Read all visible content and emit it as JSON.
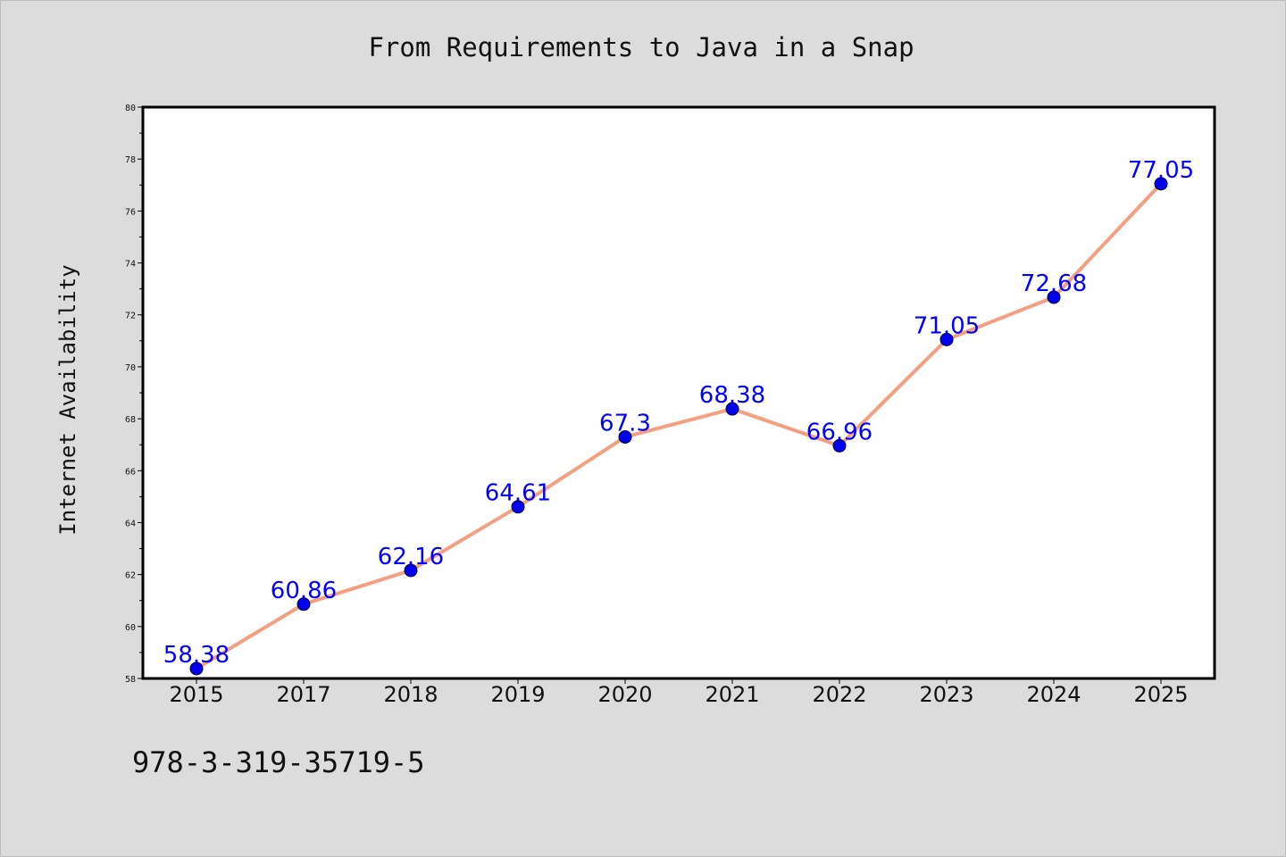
{
  "chart_data": {
    "type": "line",
    "title": "From Requirements to Java in a Snap",
    "xlabel": "",
    "ylabel": "Internet Availability",
    "categories": [
      "2015",
      "2017",
      "2018",
      "2019",
      "2020",
      "2021",
      "2022",
      "2023",
      "2024",
      "2025"
    ],
    "series": [
      {
        "values": [
          58.38,
          60.86,
          62.16,
          64.61,
          67.3,
          68.38,
          66.96,
          71.05,
          72.68,
          77.05
        ],
        "data_labels": [
          "58.38",
          "60.86",
          "62.16",
          "64.61",
          "67.3",
          "68.38",
          "66.96",
          "71.05",
          "72.68",
          "77.05"
        ]
      }
    ],
    "ylim": [
      58,
      80
    ],
    "yticks": [
      "58",
      "60",
      "62",
      "64",
      "66",
      "68",
      "70",
      "72",
      "74",
      "76",
      "78",
      "80"
    ],
    "grid": false,
    "legend": "none",
    "colors": {
      "line": "#f4a080",
      "marker": "#0000ee",
      "marker_edge": "#000033",
      "data_label": "#0000ff",
      "plot_background": "#ffffff",
      "page_background": "#dcdcdc"
    }
  },
  "footnote": "978-3-319-35719-5"
}
